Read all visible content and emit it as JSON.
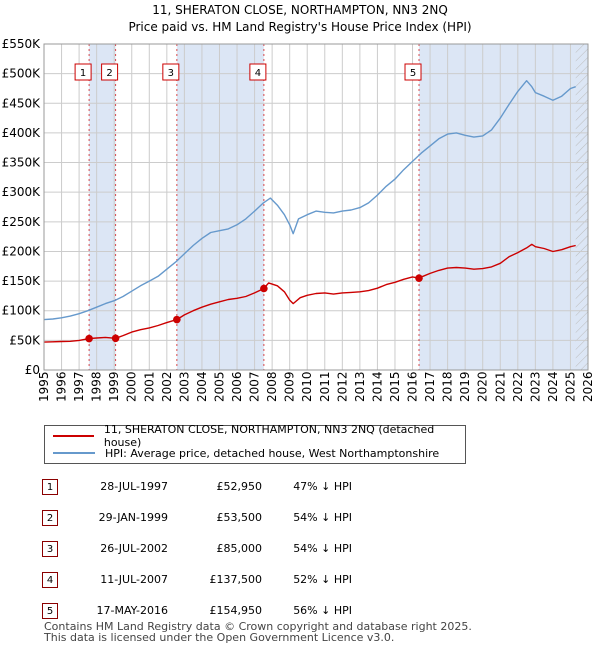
{
  "chart_data": {
    "type": "line",
    "title": "11, SHERATON CLOSE, NORTHAMPTON, NN3 2NQ",
    "subtitle": "Price paid vs. HM Land Registry's House Price Index (HPI)",
    "xlabel": "",
    "ylabel": "",
    "xlim": [
      1995,
      2026
    ],
    "ylim": [
      0,
      550000
    ],
    "x_ticks": [
      "1995",
      "1996",
      "1997",
      "1998",
      "1999",
      "2000",
      "2001",
      "2002",
      "2003",
      "2004",
      "2005",
      "2006",
      "2007",
      "2008",
      "2009",
      "2010",
      "2011",
      "2012",
      "2013",
      "2014",
      "2015",
      "2016",
      "2017",
      "2018",
      "2019",
      "2020",
      "2021",
      "2022",
      "2023",
      "2024",
      "2025",
      "2026"
    ],
    "y_ticks": [
      {
        "value": 0,
        "label": "£0"
      },
      {
        "value": 50000,
        "label": "£50K"
      },
      {
        "value": 100000,
        "label": "£100K"
      },
      {
        "value": 150000,
        "label": "£150K"
      },
      {
        "value": 200000,
        "label": "£200K"
      },
      {
        "value": 250000,
        "label": "£250K"
      },
      {
        "value": 300000,
        "label": "£300K"
      },
      {
        "value": 350000,
        "label": "£350K"
      },
      {
        "value": 400000,
        "label": "£400K"
      },
      {
        "value": 450000,
        "label": "£450K"
      },
      {
        "value": 500000,
        "label": "£500K"
      },
      {
        "value": 550000,
        "label": "£550K"
      }
    ],
    "series": [
      {
        "name": "11, SHERATON CLOSE, NORTHAMPTON, NN3 2NQ (detached house)",
        "color": "#cc0000",
        "x": [
          1995.0,
          1995.5,
          1996.0,
          1996.5,
          1997.0,
          1997.57,
          1998.0,
          1998.5,
          1999.08,
          1999.5,
          2000.0,
          2000.5,
          2001.0,
          2001.5,
          2002.0,
          2002.57,
          2003.0,
          2003.5,
          2004.0,
          2004.5,
          2005.0,
          2005.5,
          2006.0,
          2006.5,
          2007.0,
          2007.53,
          2007.8,
          2008.3,
          2008.7,
          2009.0,
          2009.2,
          2009.6,
          2010.0,
          2010.5,
          2011.0,
          2011.5,
          2012.0,
          2012.5,
          2013.0,
          2013.5,
          2014.0,
          2014.5,
          2015.0,
          2015.5,
          2016.0,
          2016.37,
          2016.6,
          2017.0,
          2017.5,
          2018.0,
          2018.5,
          2019.0,
          2019.5,
          2020.0,
          2020.5,
          2021.0,
          2021.5,
          2022.0,
          2022.5,
          2022.8,
          2023.0,
          2023.5,
          2024.0,
          2024.5,
          2025.0,
          2025.3
        ],
        "y": [
          47000,
          47500,
          48000,
          48500,
          50000,
          52950,
          54000,
          55000,
          53500,
          58000,
          64000,
          68000,
          71000,
          75000,
          80000,
          85000,
          93000,
          100000,
          106000,
          111000,
          115000,
          119000,
          121000,
          124000,
          130000,
          137500,
          147000,
          142000,
          132000,
          118000,
          112000,
          122000,
          126000,
          129000,
          130000,
          128000,
          130000,
          131000,
          132000,
          134000,
          138000,
          144000,
          148000,
          153000,
          157000,
          154950,
          158000,
          163000,
          168000,
          172000,
          173000,
          172000,
          170000,
          171000,
          174000,
          180000,
          191000,
          198000,
          206000,
          212000,
          208000,
          205000,
          200000,
          203000,
          208000,
          210000
        ]
      },
      {
        "name": "HPI: Average price, detached house, West Northamptonshire",
        "color": "#6699cc",
        "x": [
          1995.0,
          1995.5,
          1996.0,
          1996.5,
          1997.0,
          1997.5,
          1998.0,
          1998.5,
          1999.0,
          1999.5,
          2000.0,
          2000.5,
          2001.0,
          2001.5,
          2002.0,
          2002.5,
          2003.0,
          2003.5,
          2004.0,
          2004.5,
          2005.0,
          2005.5,
          2006.0,
          2006.5,
          2007.0,
          2007.5,
          2007.9,
          2008.3,
          2008.7,
          2009.0,
          2009.2,
          2009.5,
          2010.0,
          2010.5,
          2011.0,
          2011.5,
          2012.0,
          2012.5,
          2013.0,
          2013.5,
          2014.0,
          2014.5,
          2015.0,
          2015.5,
          2016.0,
          2016.5,
          2017.0,
          2017.5,
          2018.0,
          2018.5,
          2019.0,
          2019.5,
          2020.0,
          2020.5,
          2021.0,
          2021.5,
          2022.0,
          2022.5,
          2022.8,
          2023.0,
          2023.5,
          2024.0,
          2024.5,
          2025.0,
          2025.3
        ],
        "y": [
          85000,
          86000,
          88000,
          91000,
          95000,
          100000,
          106000,
          112000,
          117000,
          124000,
          133000,
          142000,
          150000,
          158000,
          170000,
          182000,
          196000,
          210000,
          222000,
          232000,
          235000,
          238000,
          245000,
          255000,
          268000,
          282000,
          290000,
          278000,
          262000,
          245000,
          230000,
          255000,
          262000,
          268000,
          266000,
          265000,
          268000,
          270000,
          274000,
          282000,
          295000,
          310000,
          322000,
          338000,
          352000,
          366000,
          378000,
          390000,
          398000,
          400000,
          396000,
          393000,
          395000,
          405000,
          425000,
          448000,
          470000,
          488000,
          478000,
          468000,
          462000,
          455000,
          462000,
          475000,
          478000
        ]
      }
    ],
    "sales": [
      {
        "num": "1",
        "year": 1997.57,
        "price": 52950
      },
      {
        "num": "2",
        "year": 1999.08,
        "price": 53500
      },
      {
        "num": "3",
        "year": 2002.57,
        "price": 85000
      },
      {
        "num": "4",
        "year": 2007.53,
        "price": 137500
      },
      {
        "num": "5",
        "year": 2016.37,
        "price": 154950
      }
    ],
    "shaded_ranges": [
      [
        1997.57,
        1999.08
      ],
      [
        2002.57,
        2007.53
      ],
      [
        2016.37,
        2026.0
      ]
    ],
    "hatched_from": 2025.3,
    "colors": {
      "property": "#cc0000",
      "hpi": "#6699cc",
      "shade": "#dce6f5",
      "grid": "#cccccc",
      "vline": "#cc0000"
    },
    "legend_position": "below"
  },
  "legend": {
    "property": "11, SHERATON CLOSE, NORTHAMPTON, NN3 2NQ (detached house)",
    "hpi": "HPI: Average price, detached house, West Northamptonshire"
  },
  "table": [
    {
      "num": "1",
      "date": "28-JUL-1997",
      "price": "£52,950",
      "hpi": "47% ↓ HPI"
    },
    {
      "num": "2",
      "date": "29-JAN-1999",
      "price": "£53,500",
      "hpi": "54% ↓ HPI"
    },
    {
      "num": "3",
      "date": "26-JUL-2002",
      "price": "£85,000",
      "hpi": "54% ↓ HPI"
    },
    {
      "num": "4",
      "date": "11-JUL-2007",
      "price": "£137,500",
      "hpi": "52% ↓ HPI"
    },
    {
      "num": "5",
      "date": "17-MAY-2016",
      "price": "£154,950",
      "hpi": "56% ↓ HPI"
    }
  ],
  "footer": {
    "line1": "Contains HM Land Registry data © Crown copyright and database right 2025.",
    "line2": "This data is licensed under the Open Government Licence v3.0."
  }
}
